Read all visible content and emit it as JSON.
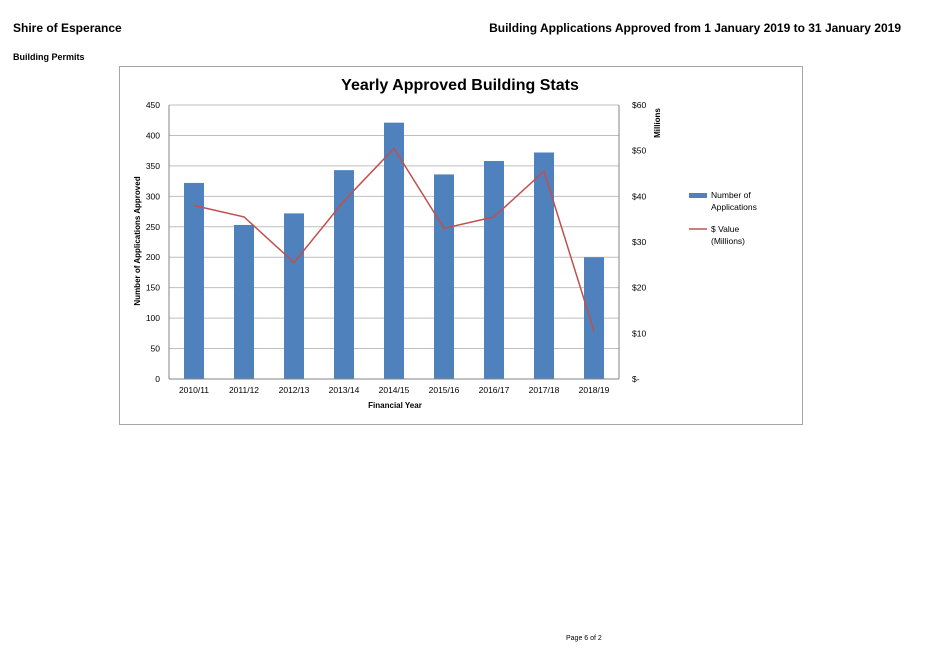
{
  "header": {
    "org": "Shire of Esperance",
    "report_title": "Building Applications Approved from 1 January 2019 to 31 January 2019",
    "section": "Building Permits"
  },
  "footer": {
    "page_label": "Page 6 of 2"
  },
  "colors": {
    "bar": "#4f81bd",
    "line": "#c0504d",
    "grid": "#bfbfbf",
    "axis": "#868686"
  },
  "chart_data": {
    "type": "bar",
    "title": "Yearly Approved Building Stats",
    "xlabel": "Financial Year",
    "ylabel": "Number of Applications Approved",
    "y2label": "Millions",
    "categories": [
      "2010/11",
      "2011/12",
      "2012/13",
      "2013/14",
      "2014/15",
      "2015/16",
      "2016/17",
      "2017/18",
      "2018/19"
    ],
    "ylim": [
      0,
      450
    ],
    "yticks": [
      0,
      50,
      100,
      150,
      200,
      250,
      300,
      350,
      400,
      450
    ],
    "y2lim": [
      0,
      60
    ],
    "y2ticks": [
      0,
      10,
      20,
      30,
      40,
      50,
      60
    ],
    "y2ticklabels": [
      "$-",
      "$10",
      "$20",
      "$30",
      "$40",
      "$50",
      "$60"
    ],
    "grid": true,
    "legend_position": "right",
    "series": [
      {
        "name": "Number of Applications",
        "type": "bar",
        "axis": "left",
        "values": [
          322,
          253,
          272,
          343,
          421,
          336,
          358,
          372,
          200
        ]
      },
      {
        "name": "$ Value (Millions)",
        "type": "line",
        "axis": "right",
        "values": [
          38,
          35.5,
          25.5,
          39,
          50.5,
          33,
          35.5,
          45.5,
          10.5
        ]
      }
    ]
  }
}
